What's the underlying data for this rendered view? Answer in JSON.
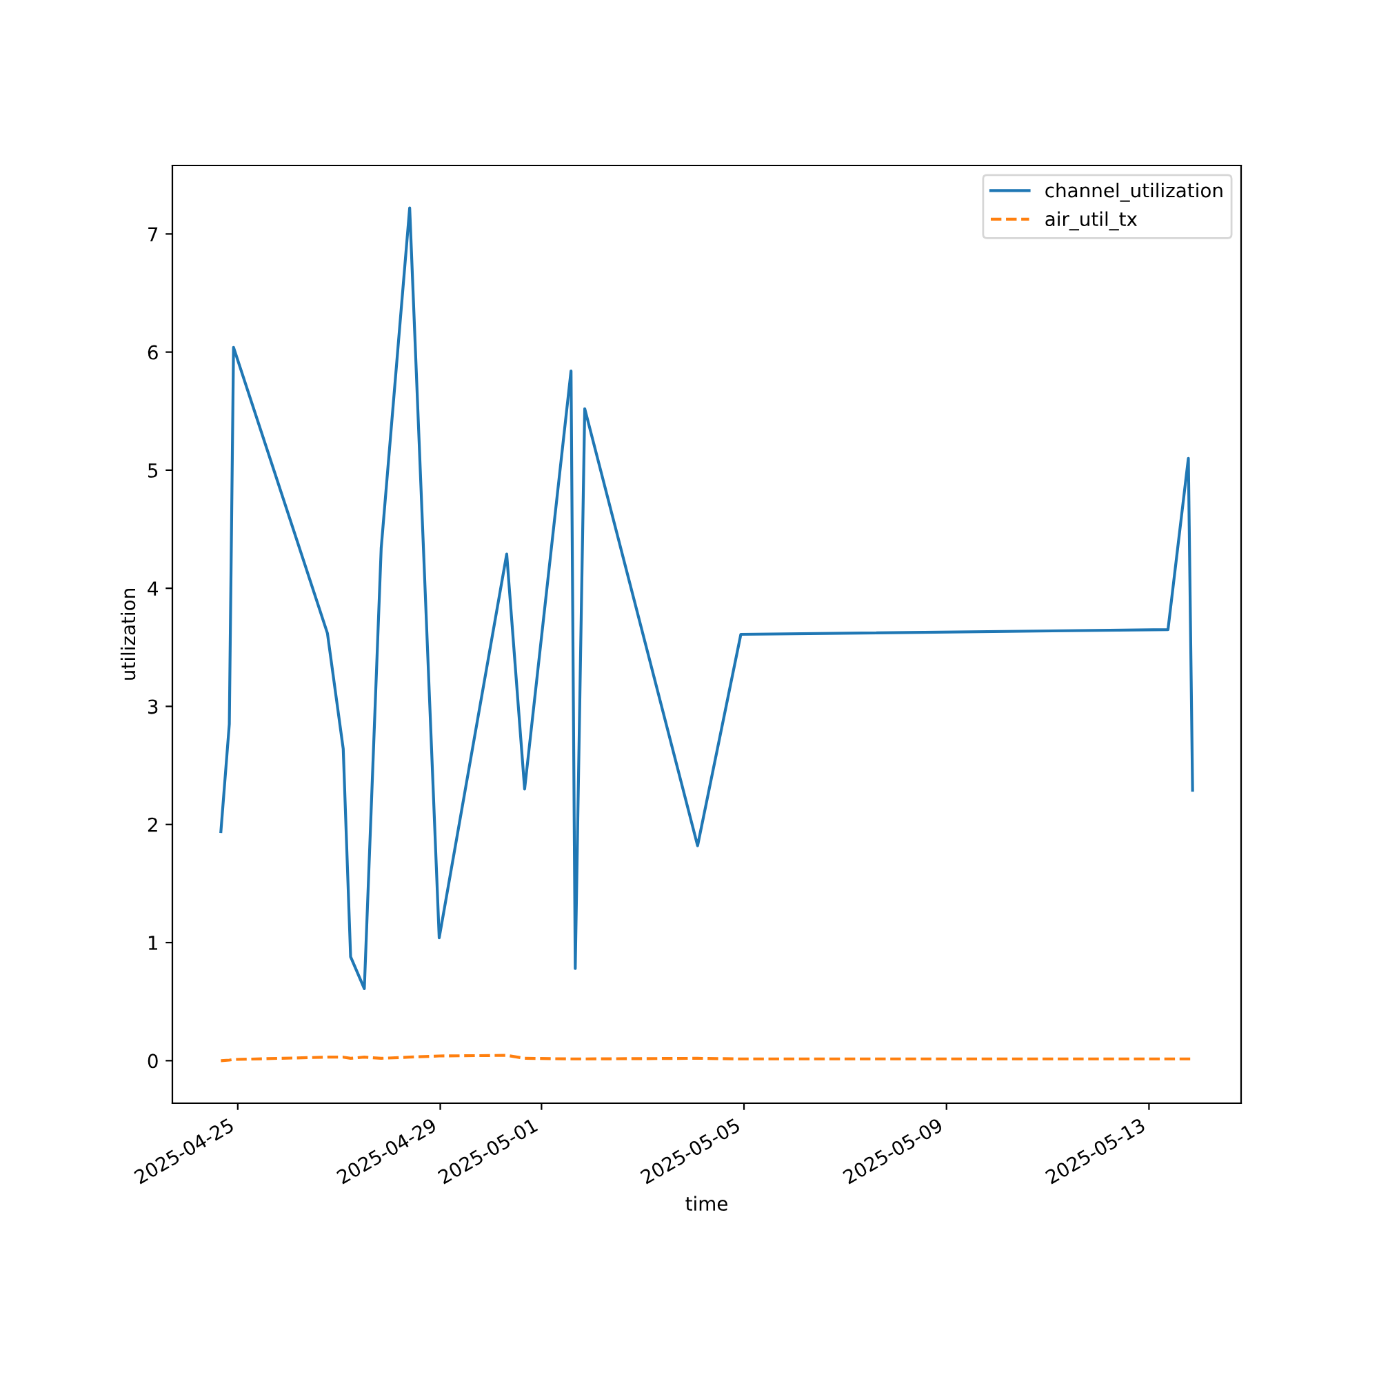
{
  "chart_data": {
    "type": "line",
    "xlabel": "time",
    "ylabel": "utilization",
    "x": [
      "2025-04-24T16:00",
      "2025-04-24T20:00",
      "2025-04-24T22:00",
      "2025-04-26T18:30",
      "2025-04-27T02:00",
      "2025-04-27T05:30",
      "2025-04-27T12:00",
      "2025-04-27T20:00",
      "2025-04-28T09:30",
      "2025-04-28T23:30",
      "2025-04-30T07:30",
      "2025-04-30T16:00",
      "2025-05-01T14:00",
      "2025-05-01T16:00",
      "2025-05-01T20:30",
      "2025-05-04T02:00",
      "2025-05-04T22:30",
      "2025-05-13T09:00",
      "2025-05-13T18:40",
      "2025-05-13T20:40"
    ],
    "series": [
      {
        "name": "channel_utilization",
        "color": "#1f77b4",
        "line_style": "solid",
        "values": [
          1.94,
          2.85,
          6.04,
          3.62,
          2.64,
          0.88,
          0.61,
          4.34,
          7.22,
          1.04,
          4.29,
          2.3,
          5.84,
          0.78,
          5.52,
          1.82,
          3.61,
          3.65,
          5.1,
          2.29
        ]
      },
      {
        "name": "air_util_tx",
        "color": "#ff7f0e",
        "line_style": "dashed",
        "values": [
          0.0,
          0.005,
          0.01,
          0.03,
          0.03,
          0.02,
          0.03,
          0.02,
          0.03,
          0.04,
          0.045,
          0.02,
          0.015,
          0.015,
          0.015,
          0.02,
          0.015,
          0.015,
          0.015,
          0.015
        ]
      }
    ],
    "xlim": [
      "2025-04-23T17:00",
      "2025-05-14T19:40"
    ],
    "xticks": [
      "2025-04-25",
      "2025-04-29",
      "2025-05-01",
      "2025-05-05",
      "2025-05-09",
      "2025-05-13"
    ],
    "ylim": [
      -0.36,
      7.58
    ],
    "yticks": [
      0,
      1,
      2,
      3,
      4,
      5,
      6,
      7
    ],
    "grid": false,
    "legend": "top right"
  }
}
